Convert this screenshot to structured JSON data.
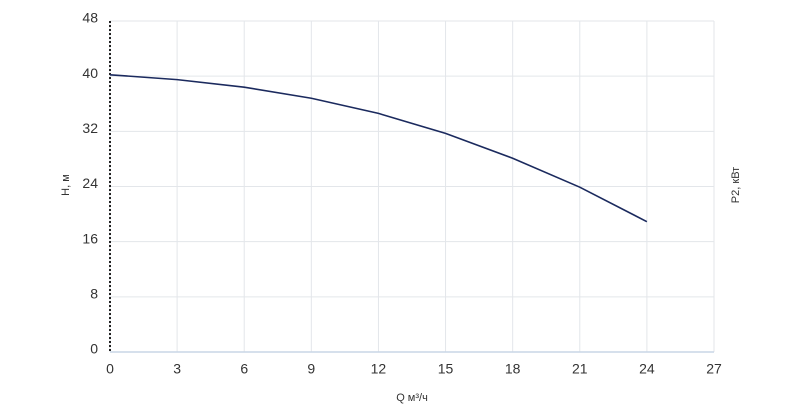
{
  "chart_data": {
    "type": "line",
    "x_label": "Q м³/ч",
    "y_label": "H, м",
    "y2_label": "P2, кВт",
    "x": [
      0,
      3,
      6,
      9,
      12,
      15,
      18,
      21,
      24
    ],
    "values": [
      40.2,
      39.5,
      38.4,
      36.8,
      34.6,
      31.7,
      28.1,
      23.9,
      18.9
    ],
    "color": "#1b2a5e",
    "xlim": [
      0,
      27
    ],
    "xticks": [
      0,
      3,
      6,
      9,
      12,
      15,
      18,
      21,
      24,
      27
    ],
    "ylim": [
      0,
      48
    ],
    "yticks": [
      0,
      8,
      16,
      24,
      32,
      40,
      48
    ],
    "grid": true
  }
}
